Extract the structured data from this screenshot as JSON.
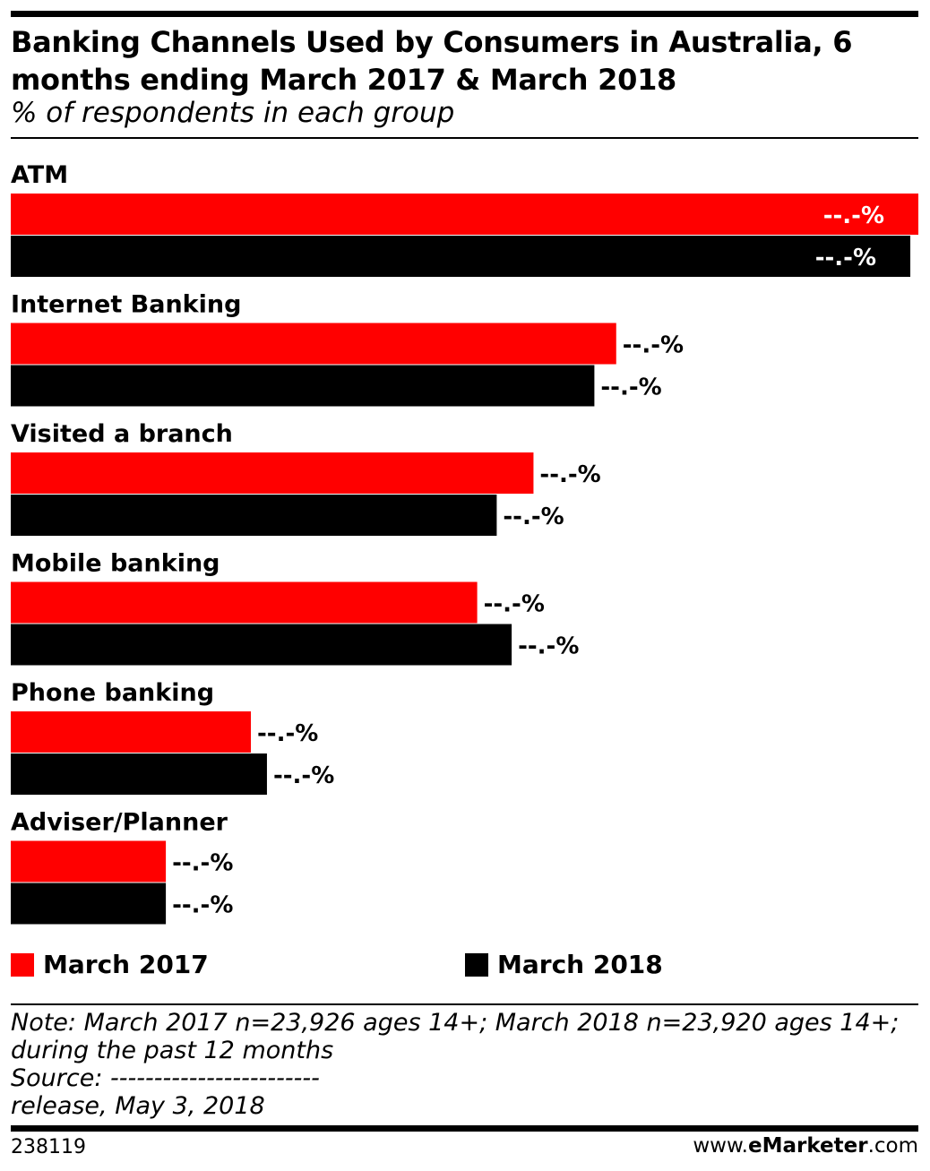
{
  "title": "Banking Channels Used by Consumers in Australia, 6 months ending March 2017 & March 2018",
  "subtitle": "% of respondents in each group",
  "colors": {
    "series_2017": "#ff0000",
    "series_2018": "#000000",
    "title": "#ff0000"
  },
  "chart_data": {
    "type": "bar",
    "orientation": "horizontal",
    "categories": [
      "ATM",
      "Internet Banking",
      "Visited a branch",
      "Mobile banking",
      "Phone banking",
      "Adviser/Planner"
    ],
    "series": [
      {
        "name": "March 2017",
        "values": [
          79.0,
          52.7,
          45.5,
          40.6,
          20.9,
          13.5
        ],
        "label": "--.-%"
      },
      {
        "name": "March 2018",
        "values": [
          78.3,
          50.8,
          42.3,
          43.6,
          22.3,
          13.5
        ],
        "label": "--.-%"
      }
    ],
    "xlim": [
      0,
      79.0
    ],
    "legend_position": "bottom"
  },
  "legend": [
    {
      "label": "March 2017",
      "color": "#ff0000"
    },
    {
      "label": "March 2018",
      "color": "#000000"
    }
  ],
  "notes": {
    "line1": "Note: March 2017 n=23,926 ages 14+; March 2018 n=23,920 ages 14+;",
    "line2": "during the past 12 months",
    "line3": "Source: ------------------------",
    "line4": "release, May 3, 2018"
  },
  "footer": {
    "id": "238119",
    "brand_prefix": "www.",
    "brand_bold": "eMarketer",
    "brand_suffix": ".com"
  }
}
